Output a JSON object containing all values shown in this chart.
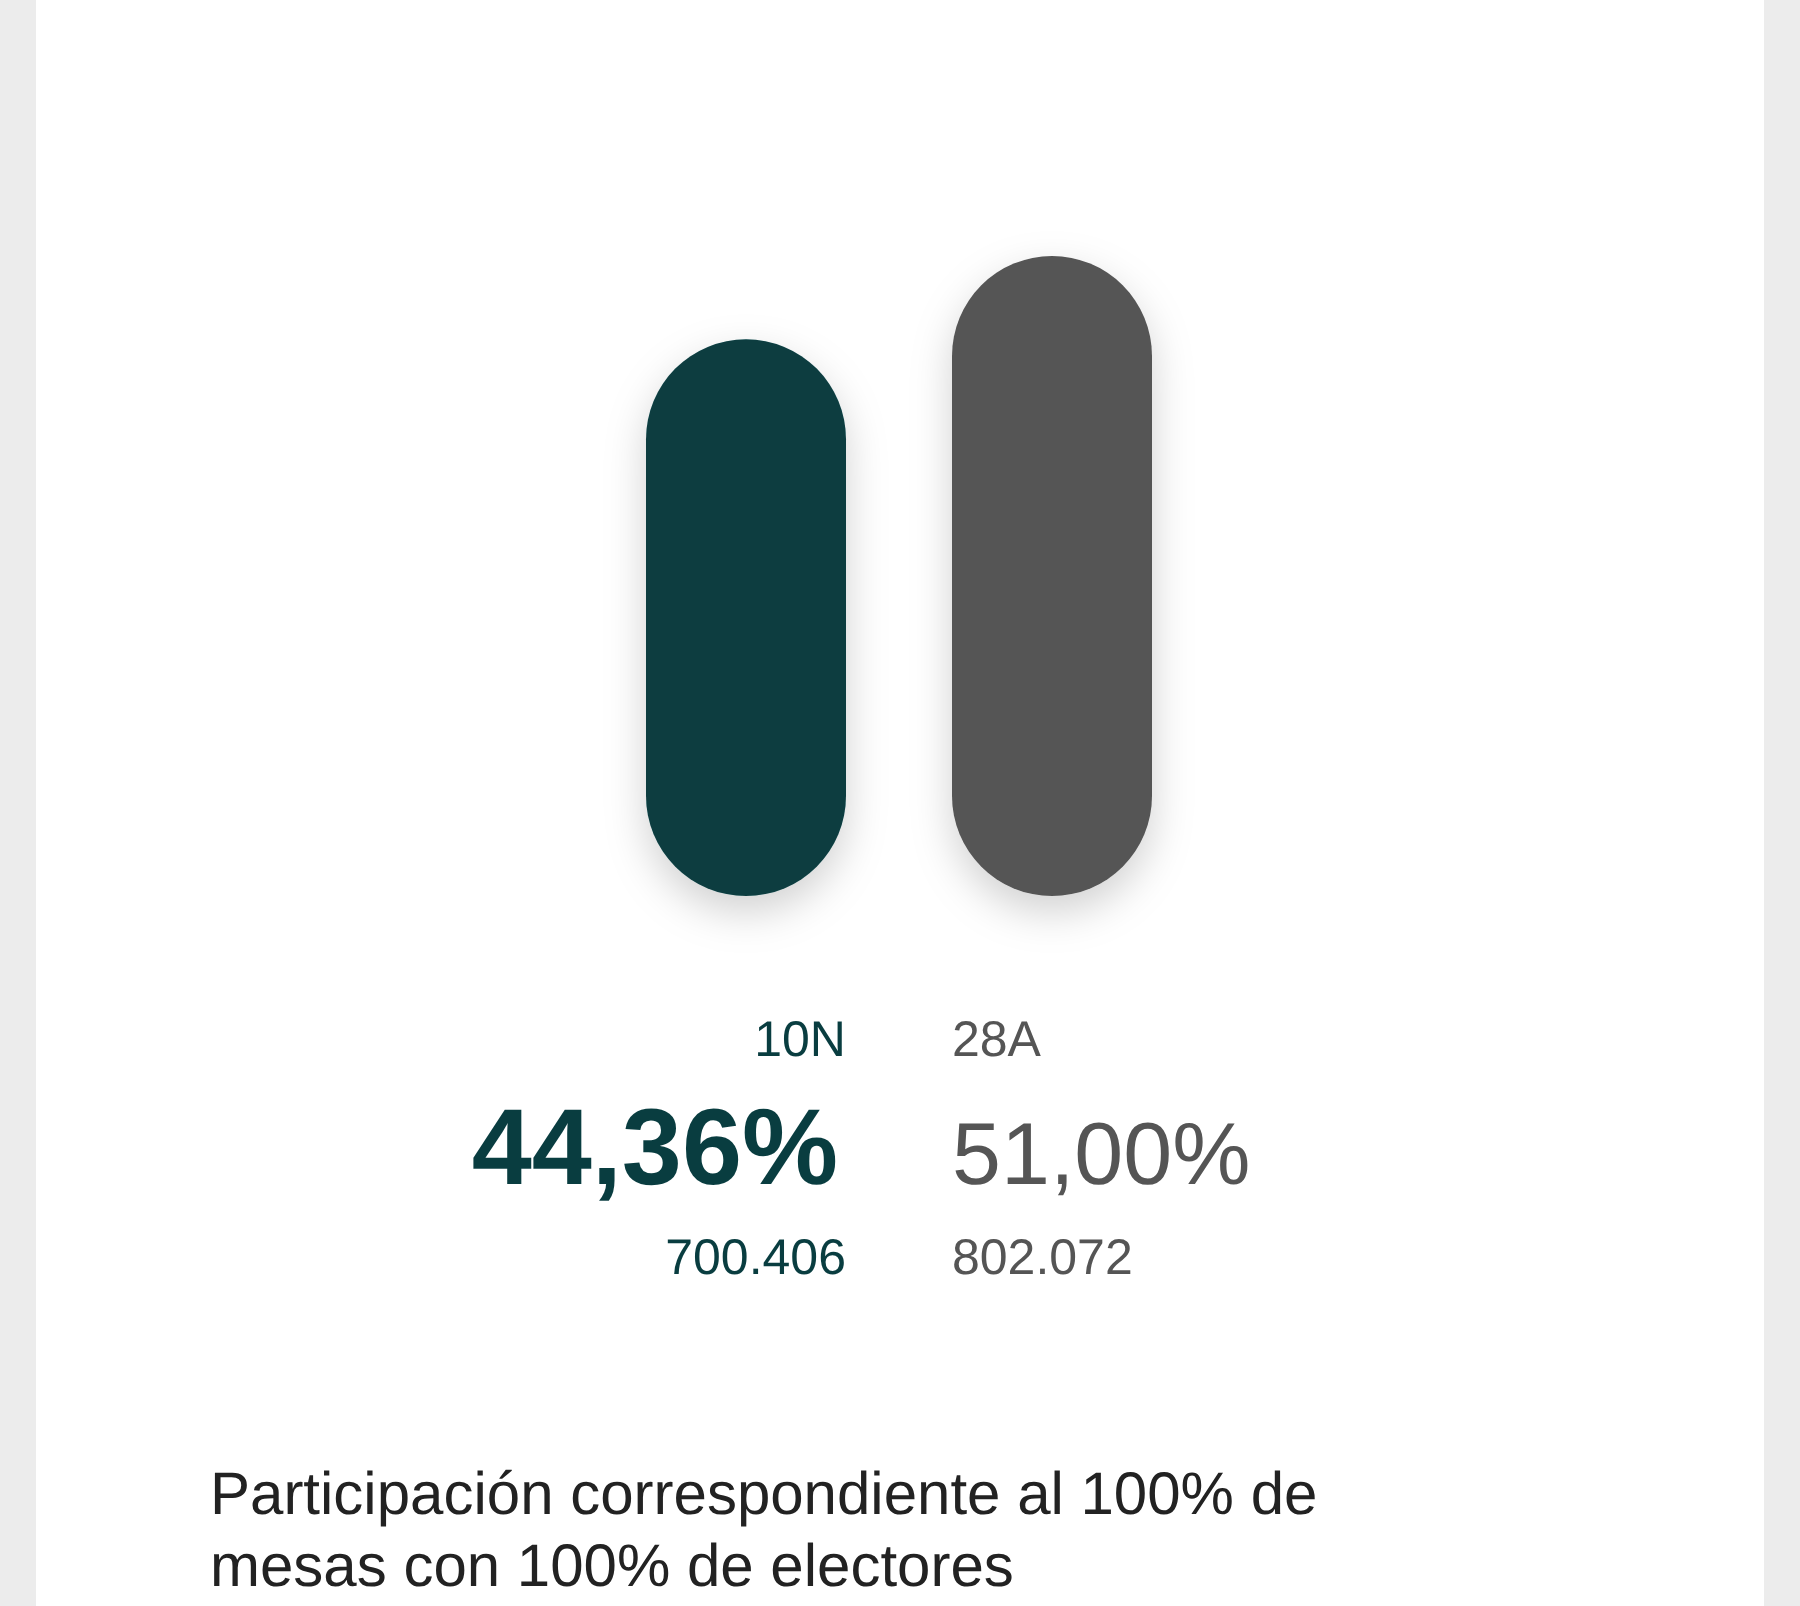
{
  "chart_data": {
    "type": "bar",
    "categories": [
      "10N",
      "28A"
    ],
    "values": [
      44.36,
      51.0
    ],
    "colors": [
      "#093d40",
      "#555555"
    ],
    "value_labels": [
      "44,36%",
      "51,00%"
    ],
    "annotations": [
      "700.406",
      "802.072",
      "Participación correspondiente al 100% de mesas con 100% de electores"
    ]
  }
}
